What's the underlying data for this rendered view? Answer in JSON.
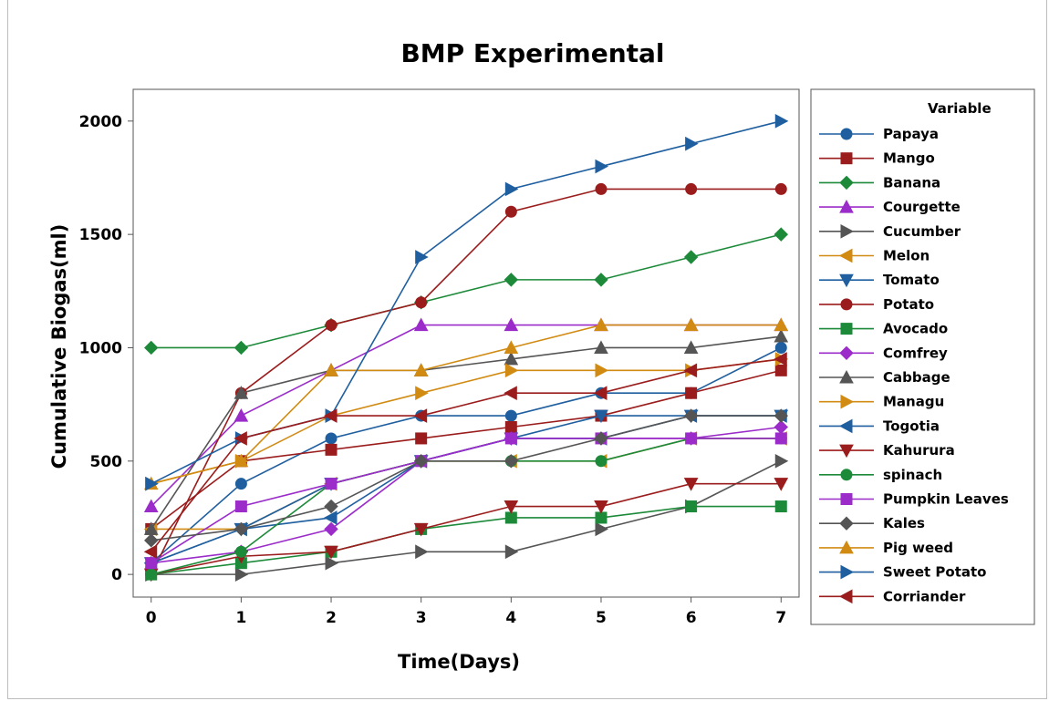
{
  "chart_data": {
    "type": "line",
    "title": "BMP Experimental",
    "xlabel": "Time(Days)",
    "ylabel": "Cumulative Biogas(ml)",
    "x": [
      0,
      1,
      2,
      3,
      4,
      5,
      6,
      7
    ],
    "xlim": [
      -0.2,
      7.2
    ],
    "ylim": [
      -100,
      2140
    ],
    "x_ticks": [
      0,
      1,
      2,
      3,
      4,
      5,
      6,
      7
    ],
    "y_ticks": [
      0,
      500,
      1000,
      1500,
      2000
    ],
    "grid": false,
    "legend_title": "Variable",
    "legend_position": "right",
    "series": [
      {
        "name": "Papaya",
        "color": "#1f5f9f",
        "marker": "circle",
        "values": [
          50,
          400,
          600,
          700,
          700,
          800,
          800,
          1000
        ]
      },
      {
        "name": "Mango",
        "color": "#9b1c1c",
        "marker": "square",
        "values": [
          200,
          500,
          550,
          600,
          650,
          700,
          800,
          900
        ]
      },
      {
        "name": "Banana",
        "color": "#1d8a3a",
        "marker": "diamond",
        "values": [
          1000,
          1000,
          1100,
          1200,
          1300,
          1300,
          1400,
          1500
        ]
      },
      {
        "name": "Courgette",
        "color": "#9b2cc9",
        "marker": "triangle-up",
        "values": [
          300,
          700,
          900,
          1100,
          1100,
          1100,
          1100,
          1100
        ]
      },
      {
        "name": "Cucumber",
        "color": "#555555",
        "marker": "triangle-right",
        "values": [
          0,
          0,
          50,
          100,
          100,
          200,
          300,
          500
        ]
      },
      {
        "name": "Melon",
        "color": "#d18b12",
        "marker": "triangle-left",
        "values": [
          200,
          200,
          400,
          500,
          500,
          500,
          600,
          600
        ]
      },
      {
        "name": "Tomato",
        "color": "#1f5f9f",
        "marker": "triangle-down",
        "values": [
          50,
          200,
          400,
          500,
          600,
          700,
          700,
          700
        ]
      },
      {
        "name": "Potato",
        "color": "#9b1c1c",
        "marker": "circle",
        "values": [
          0,
          800,
          1100,
          1200,
          1600,
          1700,
          1700,
          1700
        ]
      },
      {
        "name": "Avocado",
        "color": "#1d8a3a",
        "marker": "square",
        "values": [
          0,
          50,
          100,
          200,
          250,
          250,
          300,
          300
        ]
      },
      {
        "name": "Comfrey",
        "color": "#9b2cc9",
        "marker": "diamond",
        "values": [
          50,
          100,
          200,
          500,
          600,
          600,
          600,
          650
        ]
      },
      {
        "name": "Cabbage",
        "color": "#555555",
        "marker": "triangle-up",
        "values": [
          200,
          800,
          900,
          900,
          950,
          1000,
          1000,
          1050
        ]
      },
      {
        "name": "Managu",
        "color": "#d18b12",
        "marker": "triangle-right",
        "values": [
          400,
          500,
          700,
          800,
          900,
          900,
          900,
          950
        ]
      },
      {
        "name": "Togotia",
        "color": "#1f5f9f",
        "marker": "triangle-left",
        "values": [
          50,
          200,
          250,
          500,
          600,
          600,
          700,
          700
        ]
      },
      {
        "name": "Kahurura",
        "color": "#9b1c1c",
        "marker": "triangle-down",
        "values": [
          0,
          80,
          100,
          200,
          300,
          300,
          400,
          400
        ]
      },
      {
        "name": "spinach",
        "color": "#1d8a3a",
        "marker": "circle",
        "values": [
          0,
          100,
          400,
          500,
          500,
          500,
          600,
          600
        ]
      },
      {
        "name": "Pumpkin Leaves",
        "color": "#9b2cc9",
        "marker": "square",
        "values": [
          50,
          300,
          400,
          500,
          600,
          600,
          600,
          600
        ]
      },
      {
        "name": "Kales",
        "color": "#555555",
        "marker": "diamond",
        "values": [
          150,
          200,
          300,
          500,
          500,
          600,
          700,
          700
        ]
      },
      {
        "name": "Pig weed",
        "color": "#d18b12",
        "marker": "triangle-up",
        "values": [
          400,
          500,
          900,
          900,
          1000,
          1100,
          1100,
          1100
        ]
      },
      {
        "name": "Sweet Potato",
        "color": "#1f5f9f",
        "marker": "triangle-right",
        "values": [
          400,
          600,
          700,
          1400,
          1700,
          1800,
          1900,
          2000
        ]
      },
      {
        "name": "Corriander",
        "color": "#9b1c1c",
        "marker": "triangle-left",
        "values": [
          100,
          600,
          700,
          700,
          800,
          800,
          900,
          950
        ]
      }
    ]
  }
}
